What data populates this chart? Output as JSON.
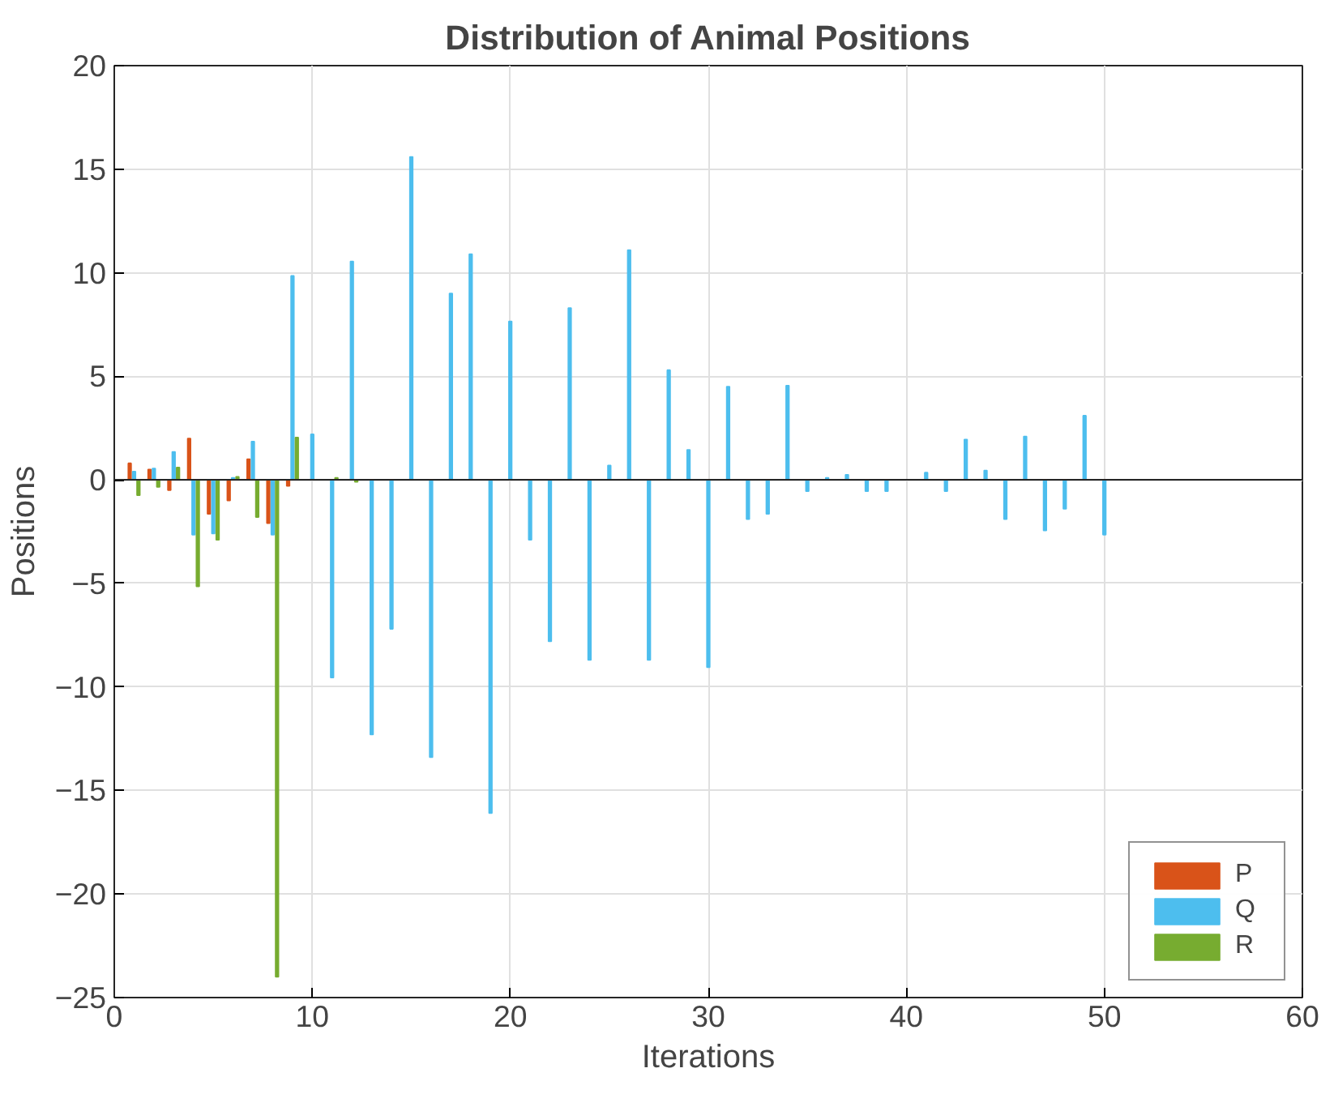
{
  "chart_data": {
    "type": "bar",
    "title": "Distribution of Animal Positions",
    "xlabel": "Iterations",
    "ylabel": "Positions",
    "x": [
      1,
      2,
      3,
      4,
      5,
      6,
      7,
      8,
      9,
      10,
      11,
      12,
      13,
      14,
      15,
      16,
      17,
      18,
      19,
      20,
      21,
      22,
      23,
      24,
      25,
      26,
      27,
      28,
      29,
      30,
      31,
      32,
      33,
      34,
      35,
      36,
      37,
      38,
      39,
      40,
      41,
      42,
      43,
      44,
      45,
      46,
      47,
      48,
      49,
      50
    ],
    "series": [
      {
        "name": "P",
        "color": "#d95319",
        "values": [
          0.8,
          0.5,
          -0.5,
          2.0,
          -1.65,
          -1.0,
          1.0,
          -2.1,
          -0.3,
          null,
          0,
          0,
          0,
          0,
          0,
          0,
          0,
          0,
          0,
          0,
          0,
          0,
          0,
          0,
          0,
          0,
          0,
          0,
          0,
          0,
          0,
          0,
          0,
          0,
          0,
          0,
          0,
          0,
          0,
          0,
          0,
          0,
          0,
          0,
          0,
          0,
          0,
          0,
          0,
          0
        ]
      },
      {
        "name": "Q",
        "color": "#4dbeee",
        "values": [
          0.4,
          0.55,
          1.35,
          -2.65,
          -2.6,
          0.1,
          1.85,
          -2.65,
          9.85,
          2.2,
          -9.55,
          10.55,
          -12.3,
          -7.2,
          15.6,
          -13.4,
          9.0,
          10.9,
          -16.1,
          7.65,
          -2.9,
          -7.8,
          8.3,
          -8.7,
          0.7,
          11.1,
          -8.7,
          5.3,
          1.45,
          -9.05,
          4.5,
          -1.9,
          -1.65,
          4.55,
          -0.55,
          0.1,
          0.25,
          -0.55,
          -0.55,
          null,
          0.35,
          -0.55,
          1.95,
          0.45,
          -1.9,
          2.1,
          -2.45,
          -1.4,
          3.1,
          -2.65
        ]
      },
      {
        "name": "R",
        "color": "#77ac30",
        "values": [
          -0.75,
          -0.35,
          0.6,
          -5.15,
          -2.9,
          0.15,
          -1.8,
          -24.0,
          2.05,
          null,
          0.1,
          -0.1,
          0,
          0,
          0,
          0,
          0,
          0,
          0,
          0,
          0,
          0,
          0,
          0,
          0,
          0,
          0,
          0,
          0,
          0,
          0,
          0,
          0,
          0,
          0,
          0,
          0,
          0,
          0,
          0,
          0,
          0,
          0,
          0,
          0,
          0,
          0,
          0,
          0,
          0
        ]
      }
    ],
    "xlim": [
      0,
      60
    ],
    "xticks": [
      0,
      10,
      20,
      30,
      40,
      50,
      60
    ],
    "ylim": [
      -25,
      20
    ],
    "yticks": [
      -25,
      -20,
      -15,
      -10,
      -5,
      0,
      5,
      10,
      15,
      20
    ],
    "grid": true,
    "legend": "bottom right"
  }
}
